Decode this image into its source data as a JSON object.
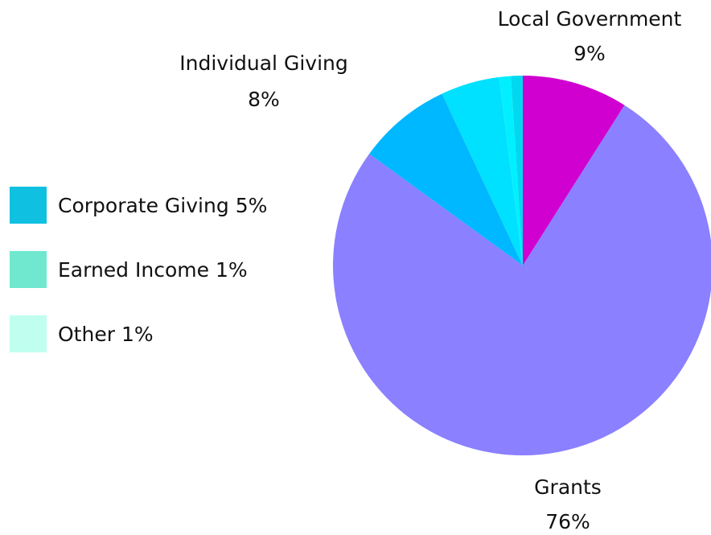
{
  "chart_data": {
    "type": "pie",
    "categories": [
      "Local Government",
      "Grants",
      "Individual Giving",
      "Corporate Giving",
      "Earned Income",
      "Other"
    ],
    "values": [
      9,
      76,
      8,
      5,
      1,
      1
    ],
    "value_labels": [
      "9%",
      "76%",
      "8%",
      "5%",
      "1%",
      "1%"
    ],
    "colors": [
      "#d000d0",
      "#8b80ff",
      "#00b8ff",
      "#00e0ff",
      "#00f0ff",
      "#00d8f0"
    ],
    "legend_colors": [
      "#10c0e0",
      "#70e8d0",
      "#c0fff0"
    ]
  }
}
